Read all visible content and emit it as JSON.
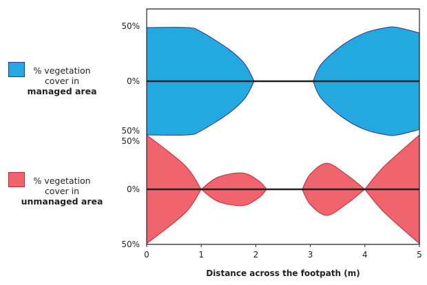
{
  "chart_data": {
    "type": "kite",
    "xlabel": "Distance across the footpath (m)",
    "xlim": [
      0,
      5
    ],
    "xticks": [
      "0",
      "1",
      "2",
      "3",
      "4",
      "5"
    ],
    "y_tick_labels": {
      "top": [
        "50%",
        "0%",
        "50%"
      ],
      "bottom": [
        "50%",
        "0%",
        "50%"
      ]
    },
    "series": [
      {
        "name": "% vegetation cover in managed area",
        "name_plain": "% vegetation cover in",
        "name_bold": "managed area",
        "color": "#24A8E0",
        "stroke": "#2E3192",
        "segments": [
          {
            "x": [
              0,
              0.75,
              1.0,
              1.5,
              1.8,
              1.97
            ],
            "half_width": [
              50,
              50,
              46,
              30,
              16,
              0
            ]
          },
          {
            "x": [
              3.05,
              3.2,
              3.6,
              4.0,
              4.4,
              4.6,
              5.0
            ],
            "half_width": [
              0,
              16,
              34,
              45,
              50,
              50,
              45
            ]
          }
        ]
      },
      {
        "name": "% vegetation cover in unmanaged area",
        "name_plain": "% vegetation cover in",
        "name_bold": "unmanaged area",
        "color": "#F0646E",
        "stroke": "#C1272D",
        "segments": [
          {
            "x": [
              0,
              0.7,
              1.0
            ],
            "half_width": [
              50,
              22,
              0
            ]
          },
          {
            "x": [
              1.0,
              1.3,
              1.75,
              2.05,
              2.2
            ],
            "half_width": [
              0,
              11,
              15,
              8,
              0
            ]
          },
          {
            "x": [
              2.85,
              3.0,
              3.3,
              3.65,
              4.0
            ],
            "half_width": [
              0,
              14,
              24,
              14,
              0
            ]
          },
          {
            "x": [
              4.0,
              4.35,
              5.0
            ],
            "half_width": [
              0,
              21,
              50
            ]
          }
        ]
      }
    ]
  }
}
